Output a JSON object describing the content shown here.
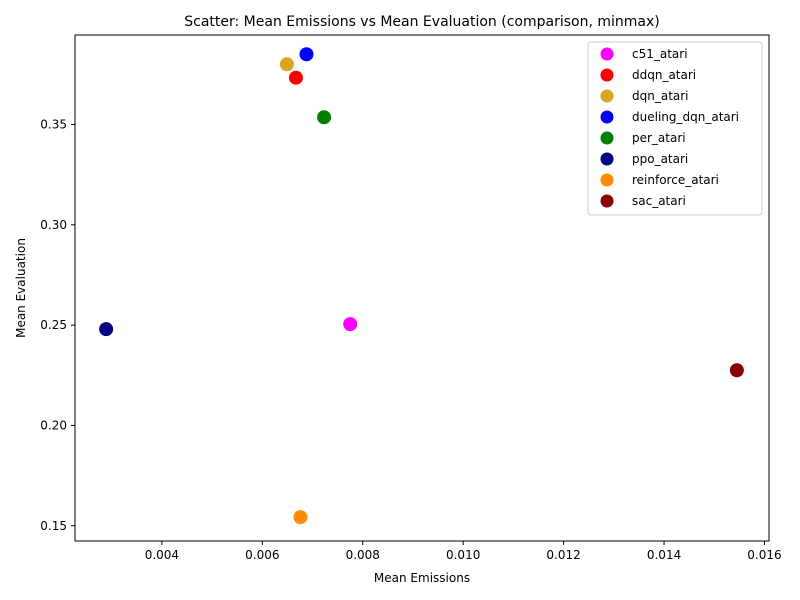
{
  "chart_data": {
    "type": "scatter",
    "title": "Scatter: Mean Emissions vs Mean Evaluation (comparison, minmax)",
    "xlabel": "Mean Emissions",
    "ylabel": "Mean Evaluation",
    "xlim": [
      0.00227,
      0.01609
    ],
    "ylim": [
      0.1424,
      0.3946
    ],
    "xticks": [
      0.004,
      0.006,
      0.008,
      0.01,
      0.012,
      0.014,
      0.016
    ],
    "xtick_labels": [
      "0.004",
      "0.006",
      "0.008",
      "0.010",
      "0.012",
      "0.014",
      "0.016"
    ],
    "yticks": [
      0.15,
      0.2,
      0.25,
      0.3,
      0.35
    ],
    "ytick_labels": [
      "0.15",
      "0.20",
      "0.25",
      "0.30",
      "0.35"
    ],
    "grid": false,
    "legend_position": "top-right",
    "series": [
      {
        "name": "c51_atari",
        "color": "#ff00ff",
        "x": [
          0.00775
        ],
        "y": [
          0.2505
        ]
      },
      {
        "name": "ddqn_atari",
        "color": "#ff0000",
        "x": [
          0.00667
        ],
        "y": [
          0.3733
        ]
      },
      {
        "name": "dqn_atari",
        "color": "#daa520",
        "x": [
          0.00649
        ],
        "y": [
          0.38
        ]
      },
      {
        "name": "dueling_dqn_atari",
        "color": "#0000ff",
        "x": [
          0.00688
        ],
        "y": [
          0.385
        ]
      },
      {
        "name": "per_atari",
        "color": "#008000",
        "x": [
          0.00723
        ],
        "y": [
          0.3536
        ]
      },
      {
        "name": "ppo_atari",
        "color": "#000080",
        "x": [
          0.00289
        ],
        "y": [
          0.248
        ]
      },
      {
        "name": "reinforce_atari",
        "color": "#ff8c00",
        "x": [
          0.00676
        ],
        "y": [
          0.1543
        ]
      },
      {
        "name": "sac_atari",
        "color": "#8b0000",
        "x": [
          0.01545
        ],
        "y": [
          0.2275
        ]
      }
    ]
  }
}
